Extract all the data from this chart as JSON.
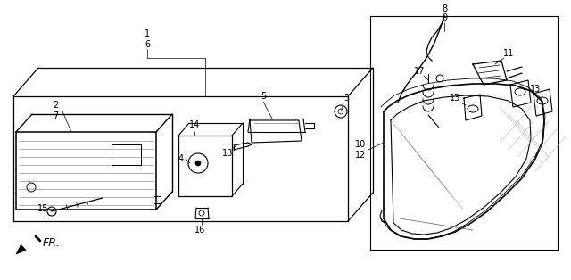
{
  "bg_color": "#ffffff",
  "line_color": "#000000",
  "gray": "#888888",
  "light_gray": "#cccccc",
  "fs": 7,
  "lw_main": 0.9,
  "lw_thin": 0.6,
  "lw_leader": 0.5
}
